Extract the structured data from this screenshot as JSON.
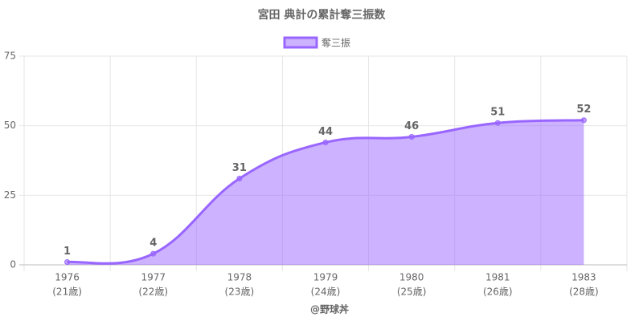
{
  "chart_data": {
    "type": "line",
    "title": "宮田 典計の累計奪三振数",
    "categories": [
      [
        "1976",
        "(21歳)"
      ],
      [
        "1977",
        "(22歳)"
      ],
      [
        "1978",
        "(23歳)"
      ],
      [
        "1979",
        "(24歳)"
      ],
      [
        "1980",
        "(25歳)"
      ],
      [
        "1981",
        "(26歳)"
      ],
      [
        "1983",
        "(28歳)"
      ]
    ],
    "series": [
      {
        "name": "奪三振",
        "color": "#9966ff",
        "values": [
          1,
          4,
          31,
          44,
          46,
          51,
          52
        ]
      }
    ],
    "x_label": "@野球丼",
    "ylim": [
      0,
      75
    ],
    "yticks": [
      0,
      25,
      50,
      75
    ],
    "grid": true,
    "legend": "top",
    "fill": true
  }
}
